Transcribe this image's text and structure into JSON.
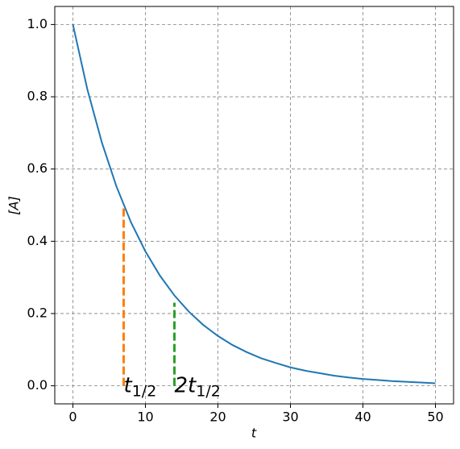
{
  "chart_data": {
    "type": "line",
    "xlabel": "t",
    "ylabel": "[A]",
    "series": [
      {
        "color": "#1f77b4",
        "dash": false,
        "x": [
          0,
          2,
          4,
          6,
          8,
          10,
          12,
          14,
          16,
          18,
          20,
          22,
          24,
          26,
          28,
          30,
          32,
          34,
          36,
          38,
          40,
          42,
          44,
          46,
          48,
          50
        ],
        "values": [
          1,
          0.82,
          0.673,
          0.552,
          0.453,
          0.372,
          0.305,
          0.25,
          0.205,
          0.168,
          0.138,
          0.113,
          0.093,
          0.076,
          0.063,
          0.051,
          0.042,
          0.035,
          0.028,
          0.023,
          0.019,
          0.016,
          0.013,
          0.011,
          0.009,
          0.007
        ]
      },
      {
        "color": "#ff7f0e",
        "dash": true,
        "x": [
          7,
          7
        ],
        "values": [
          0,
          0.5
        ]
      },
      {
        "color": "#2ca02c",
        "dash": true,
        "x": [
          14,
          14
        ],
        "values": [
          0,
          0.23
        ]
      }
    ],
    "annotations": [
      {
        "text": "t",
        "subscript": "1/2"
      },
      {
        "text": "2t",
        "subscript": "1/2"
      }
    ],
    "xlim": [
      -2.5,
      52.5
    ],
    "xticks": [
      0,
      10,
      20,
      30,
      40,
      50
    ],
    "ylim": [
      -0.05,
      1.05
    ],
    "yticks": [
      {
        "value": 0,
        "label": "0.0"
      },
      0.2,
      0.4,
      0.6,
      0.8,
      {
        "value": 1,
        "label": "1.0"
      }
    ],
    "grid": true
  }
}
